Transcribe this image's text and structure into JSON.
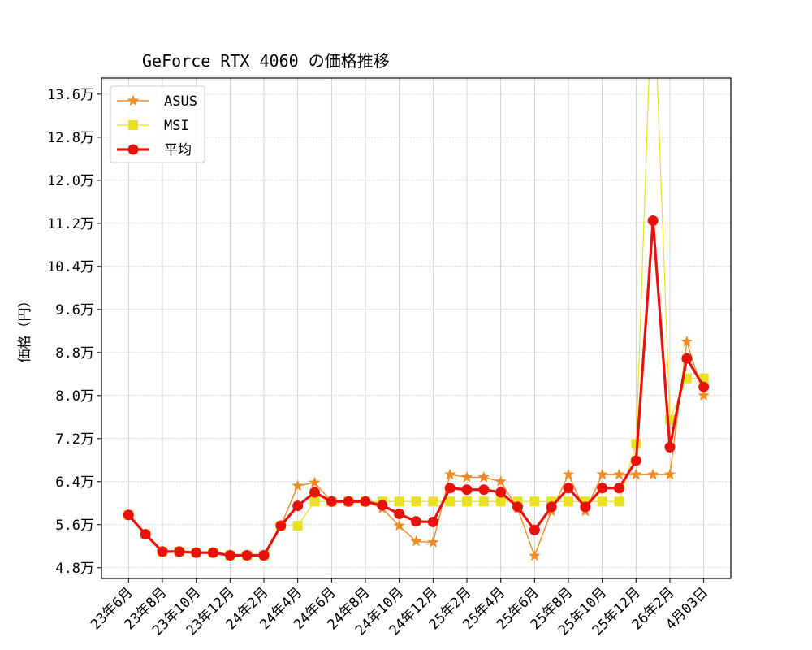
{
  "chart_data": {
    "type": "line",
    "title": "GeForce RTX 4060 の価格推移",
    "xlabel": "",
    "ylabel": "価格（円）",
    "ylim": [
      46000,
      139000
    ],
    "grid": true,
    "legend_position": "top-left",
    "y_ticks": [
      48000,
      56000,
      64000,
      72000,
      80000,
      88000,
      96000,
      104000,
      112000,
      120000,
      128000,
      136000
    ],
    "y_tick_labels": [
      "4.8万",
      "5.6万",
      "6.4万",
      "7.2万",
      "8.0万",
      "8.8万",
      "9.6万",
      "10.4万",
      "11.2万",
      "12.0万",
      "12.8万",
      "13.6万"
    ],
    "x_ticks": [
      0,
      2,
      4,
      6,
      8,
      10,
      12,
      14,
      16,
      18,
      20,
      22,
      24,
      26,
      28,
      30,
      32,
      34
    ],
    "x_tick_labels": [
      "23年6月",
      "23年8月",
      "23年10月",
      "23年12月",
      "24年2月",
      "24年4月",
      "24年6月",
      "24年8月",
      "24年10月",
      "24年12月",
      "25年2月",
      "25年4月",
      "25年6月",
      "25年8月",
      "25年10月",
      "25年12月",
      "26年2月",
      "4月03日"
    ],
    "x": [
      0,
      1,
      2,
      3,
      4,
      5,
      6,
      7,
      8,
      9,
      10,
      11,
      12,
      13,
      14,
      15,
      16,
      17,
      18,
      19,
      20,
      21,
      22,
      23,
      24,
      25,
      26,
      27,
      28,
      29,
      30,
      31,
      32,
      33,
      34
    ],
    "series": [
      {
        "name": "ASUS",
        "color": "#f08a24",
        "marker": "star",
        "values": [
          57800,
          54200,
          51000,
          51000,
          50800,
          50800,
          50300,
          50300,
          50300,
          55800,
          63200,
          63800,
          60300,
          60300,
          60300,
          59000,
          55800,
          52900,
          52700,
          65300,
          64800,
          64800,
          64000,
          59000,
          50200,
          58500,
          65300,
          58500,
          65300,
          65300,
          65300,
          65300,
          65300,
          90000,
          80000
        ]
      },
      {
        "name": "MSI",
        "color": "#e8e020",
        "marker": "square",
        "values": [
          57800,
          54200,
          51000,
          51000,
          50800,
          50800,
          50300,
          50300,
          50300,
          55800,
          55800,
          60300,
          60300,
          60300,
          60300,
          60300,
          60300,
          60300,
          60300,
          60300,
          60300,
          60300,
          60300,
          60300,
          60300,
          60300,
          60300,
          60300,
          60300,
          60300,
          71000,
          160000,
          75500,
          83200,
          83200
        ]
      },
      {
        "name": "平均",
        "color": "#e8120c",
        "marker": "circle",
        "values": [
          57800,
          54200,
          51000,
          51000,
          50800,
          50800,
          50300,
          50300,
          50300,
          55800,
          59500,
          62000,
          60300,
          60300,
          60300,
          59600,
          58000,
          56600,
          56500,
          62800,
          62500,
          62500,
          62000,
          59300,
          55000,
          59300,
          62800,
          59300,
          62800,
          62800,
          67900,
          112500,
          70400,
          86900,
          81600
        ]
      }
    ]
  }
}
